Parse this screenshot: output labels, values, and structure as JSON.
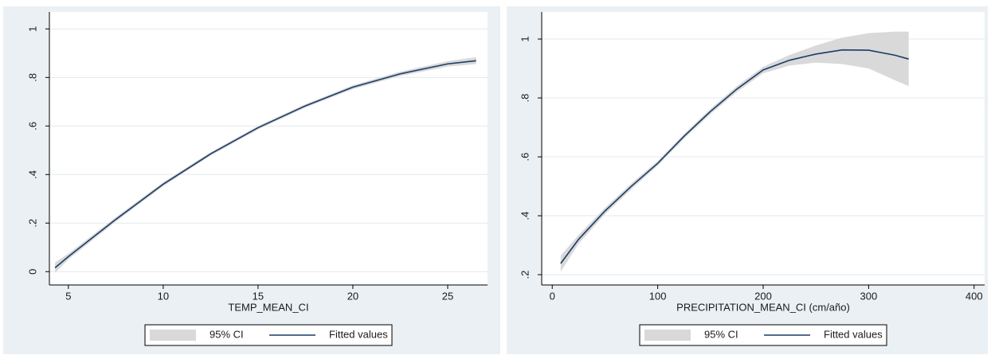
{
  "chart_data": [
    {
      "type": "line",
      "x_label": "TEMP_MEAN_CI",
      "x": [
        4.3,
        5,
        7.5,
        10,
        12.5,
        15,
        17.5,
        20,
        22.5,
        25,
        26.5
      ],
      "series": [
        {
          "name": "95% CI",
          "color": "#d9d9d9",
          "lower": [
            -0.005,
            0.05,
            0.206,
            0.352,
            0.478,
            0.586,
            0.676,
            0.752,
            0.806,
            0.845,
            0.855
          ],
          "upper": [
            0.038,
            0.074,
            0.224,
            0.368,
            0.492,
            0.6,
            0.69,
            0.768,
            0.824,
            0.867,
            0.884
          ]
        },
        {
          "name": "Fitted values",
          "color": "#1a3b66",
          "values": [
            0.016,
            0.062,
            0.215,
            0.36,
            0.485,
            0.593,
            0.683,
            0.76,
            0.815,
            0.856,
            0.869
          ]
        }
      ],
      "xlim": [
        4.0,
        27.1
      ],
      "xticks": [
        5,
        10,
        15,
        20,
        25
      ],
      "ylim": [
        -0.055,
        1.07
      ],
      "yticks": [
        0,
        {
          "value": 0.2,
          "label": ".2"
        },
        {
          "value": 0.4,
          "label": ".4"
        },
        {
          "value": 0.6,
          "label": ".6"
        },
        {
          "value": 0.8,
          "label": ".8"
        },
        1
      ],
      "grid": true
    },
    {
      "type": "line",
      "x_label": "PRECIPITATION_MEAN_CI (cm/año)",
      "x": [
        8,
        25,
        50,
        75,
        100,
        125,
        150,
        175,
        200,
        225,
        250,
        275,
        300,
        325,
        338
      ],
      "series": [
        {
          "name": "95% CI",
          "color": "#d9d9d9",
          "lower": [
            0.21,
            0.305,
            0.405,
            0.49,
            0.57,
            0.662,
            0.745,
            0.82,
            0.884,
            0.91,
            0.92,
            0.915,
            0.9,
            0.86,
            0.84
          ],
          "upper": [
            0.265,
            0.335,
            0.427,
            0.51,
            0.586,
            0.678,
            0.763,
            0.84,
            0.906,
            0.946,
            0.978,
            1.005,
            1.02,
            1.025,
            1.025
          ]
        },
        {
          "name": "Fitted values",
          "color": "#1a3b66",
          "values": [
            0.238,
            0.32,
            0.416,
            0.5,
            0.578,
            0.67,
            0.754,
            0.83,
            0.895,
            0.928,
            0.949,
            0.963,
            0.962,
            0.945,
            0.932
          ]
        }
      ],
      "xlim": [
        -10,
        410
      ],
      "xticks": [
        0,
        100,
        200,
        300,
        400
      ],
      "ylim": [
        0.165,
        1.092
      ],
      "yticks": [
        {
          "value": 0.2,
          "label": ".2"
        },
        {
          "value": 0.4,
          "label": ".4"
        },
        {
          "value": 0.6,
          "label": ".6"
        },
        {
          "value": 0.8,
          "label": ".8"
        },
        1
      ],
      "grid": true
    }
  ]
}
